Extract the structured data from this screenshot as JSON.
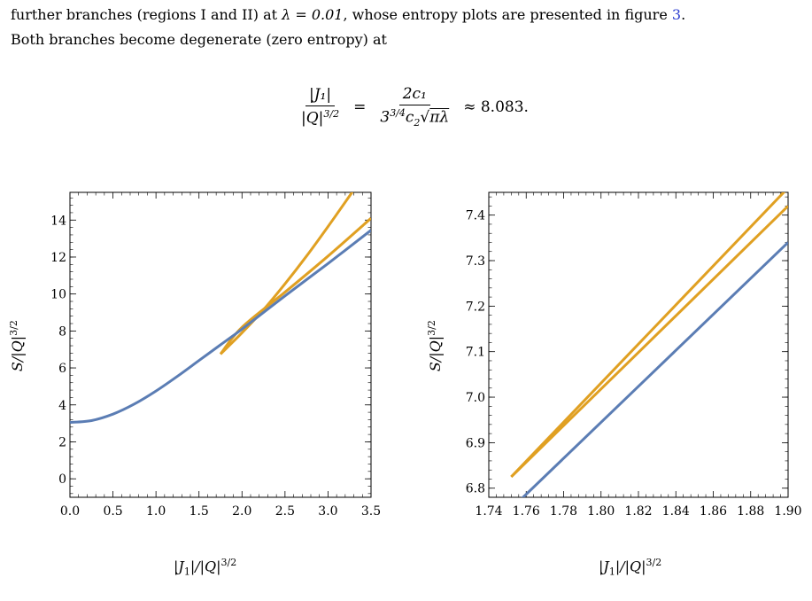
{
  "paragraph": {
    "line1_before": "further branches (regions I and II) at ",
    "lambda_eq": "λ = 0.01",
    "line1_after": ", whose entropy plots are presented in figure ",
    "figure_ref": "3",
    "line1_end": ".",
    "line2": "Both branches become degenerate (zero entropy) at"
  },
  "equation": {
    "lhs_numerator": "|J₁|",
    "lhs_denominator": "|Q|^(3/2)",
    "rhs_numerator": "2c₁",
    "rhs_denominator": "3^(3/4) c₂ √(πλ)",
    "approx_value": "≈ 8.083."
  },
  "colors": {
    "blue": "#5b7db4",
    "orange": "#e0a022"
  },
  "chart_data": [
    {
      "type": "line",
      "xlabel": "|J1|/|Q|^3/2",
      "ylabel": "S/|Q|^3/2",
      "xlim": [
        0,
        3.5
      ],
      "ylim": [
        -1,
        15.5
      ],
      "xticks": [
        "0.0",
        "0.5",
        "1.0",
        "1.5",
        "2.0",
        "2.5",
        "3.0",
        "3.5"
      ],
      "yticks": [
        "0",
        "2",
        "4",
        "6",
        "8",
        "10",
        "12",
        "14"
      ],
      "series": [
        {
          "color": "blue",
          "x": [
            0,
            0.25,
            0.5,
            0.75,
            1.0,
            1.25,
            1.5,
            1.75,
            2.0,
            2.5,
            3.0,
            3.5
          ],
          "y": [
            3.05,
            3.15,
            3.5,
            4.05,
            4.75,
            5.55,
            6.4,
            7.25,
            8.1,
            9.9,
            11.65,
            13.45
          ]
        },
        {
          "color": "orange",
          "x": [
            1.75,
            2.0,
            2.5,
            3.0,
            3.5
          ],
          "y": [
            6.75,
            8.2,
            10.1,
            12.05,
            14.1
          ]
        },
        {
          "color": "orange",
          "x": [
            1.75,
            2.0,
            2.25,
            2.5,
            2.75,
            3.0,
            3.25,
            3.32
          ],
          "y": [
            6.75,
            7.9,
            9.15,
            10.55,
            12.05,
            13.65,
            15.3,
            15.8
          ]
        }
      ]
    },
    {
      "type": "line",
      "xlabel": "|J1|/|Q|^3/2",
      "ylabel": "S/|Q|^3/2",
      "xlim": [
        1.74,
        1.9
      ],
      "ylim": [
        6.78,
        7.45
      ],
      "xticks": [
        "1.74",
        "1.76",
        "1.78",
        "1.80",
        "1.82",
        "1.84",
        "1.86",
        "1.88",
        "1.90"
      ],
      "yticks": [
        "6.8",
        "6.9",
        "7.0",
        "7.1",
        "7.2",
        "7.3",
        "7.4"
      ],
      "series": [
        {
          "color": "blue",
          "x": [
            1.752,
            1.9
          ],
          "y": [
            6.755,
            7.34
          ]
        },
        {
          "color": "orange",
          "x": [
            1.752,
            1.9
          ],
          "y": [
            6.825,
            7.42
          ]
        },
        {
          "color": "orange",
          "x": [
            1.752,
            1.9
          ],
          "y": [
            6.825,
            7.46
          ]
        }
      ]
    }
  ]
}
